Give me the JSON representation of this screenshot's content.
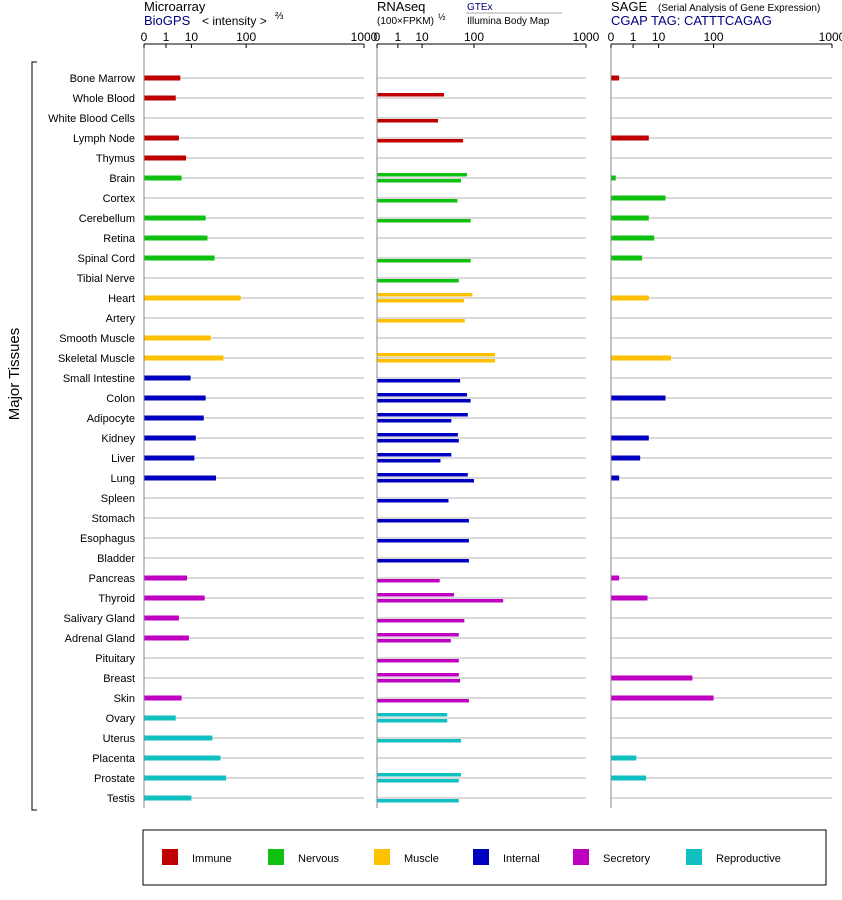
{
  "y_axis_title": "Major Tissues",
  "panels": [
    {
      "title": "Microarray",
      "subtitle": "BioGPS",
      "unit_main": "< intensity >",
      "unit_exp": "⅔",
      "ticks": [
        "0",
        "1",
        "10",
        "100",
        "1000"
      ]
    },
    {
      "title": "RNAseq",
      "unit_main": "(100×FPKM)",
      "unit_exp": "½",
      "source_1": "GTEx",
      "source_2": "Illumina Body Map",
      "ticks": [
        "0",
        "1",
        "10",
        "100",
        "1000"
      ]
    },
    {
      "title": "SAGE",
      "note": "(Serial Analysis of Gene Expression)",
      "subtitle": "CGAP TAG: CATTTCAGAG",
      "ticks": [
        "0",
        "1",
        "10",
        "100",
        "1000"
      ]
    }
  ],
  "legend": [
    {
      "label": "Immune",
      "color": "#c00000"
    },
    {
      "label": "Nervous",
      "color": "#10c010"
    },
    {
      "label": "Muscle",
      "color": "#ffc000"
    },
    {
      "label": "Internal",
      "color": "#0000c0"
    },
    {
      "label": "Secretory",
      "color": "#c000c0"
    },
    {
      "label": "Reproductive",
      "color": "#10c0c0"
    }
  ],
  "chart_data": {
    "type": "bar",
    "x_scale": "cube-root",
    "xlim": [
      0,
      1000
    ],
    "categories": [
      "Bone Marrow",
      "Whole Blood",
      "White Blood Cells",
      "Lymph Node",
      "Thymus",
      "Brain",
      "Cortex",
      "Cerebellum",
      "Retina",
      "Spinal Cord",
      "Tibial Nerve",
      "Heart",
      "Artery",
      "Smooth Muscle",
      "Skeletal Muscle",
      "Small Intestine",
      "Colon",
      "Adipocyte",
      "Kidney",
      "Liver",
      "Lung",
      "Spleen",
      "Stomach",
      "Esophagus",
      "Bladder",
      "Pancreas",
      "Thyroid",
      "Salivary Gland",
      "Adrenal Gland",
      "Pituitary",
      "Breast",
      "Skin",
      "Ovary",
      "Uterus",
      "Placenta",
      "Prostate",
      "Testis"
    ],
    "groups": [
      0,
      0,
      0,
      0,
      0,
      1,
      1,
      1,
      1,
      1,
      1,
      2,
      2,
      2,
      2,
      3,
      3,
      3,
      3,
      3,
      3,
      3,
      3,
      3,
      3,
      4,
      4,
      4,
      4,
      4,
      4,
      4,
      5,
      5,
      5,
      5,
      5
    ],
    "series": [
      {
        "name": "Microarray",
        "values": [
          4.5,
          3,
          null,
          4,
          7,
          5,
          null,
          22,
          24,
          33,
          null,
          85,
          null,
          28,
          47,
          9.5,
          22,
          20,
          13,
          12,
          35,
          null,
          null,
          null,
          null,
          7.5,
          21,
          4,
          8.5,
          null,
          null,
          5,
          3,
          30,
          42,
          52,
          10
        ]
      },
      {
        "name": "GTEx",
        "values": [
          null,
          33,
          null,
          null,
          null,
          80,
          null,
          null,
          null,
          null,
          null,
          95,
          null,
          null,
          180,
          null,
          80,
          82,
          58,
          45,
          82,
          null,
          null,
          null,
          null,
          null,
          50,
          null,
          60,
          null,
          60,
          null,
          38,
          null,
          null,
          65,
          null
        ]
      },
      {
        "name": "Illumina Body Map",
        "values": [
          null,
          null,
          25,
          70,
          null,
          65,
          57,
          90,
          null,
          90,
          60,
          72,
          74,
          null,
          180,
          63,
          90,
          45,
          60,
          28,
          100,
          40,
          85,
          85,
          85,
          27,
          220,
          73,
          44,
          60,
          63,
          85,
          38,
          65,
          null,
          60,
          60
        ]
      },
      {
        "name": "SAGE",
        "values": [
          0.05,
          null,
          null,
          5,
          null,
          0.01,
          15,
          5,
          7.5,
          2.8,
          null,
          5,
          null,
          null,
          20,
          null,
          15,
          null,
          5,
          2.3,
          0.05,
          null,
          null,
          null,
          null,
          0.05,
          4.5,
          null,
          null,
          null,
          50,
          100,
          null,
          null,
          1.5,
          4,
          null
        ]
      }
    ]
  }
}
